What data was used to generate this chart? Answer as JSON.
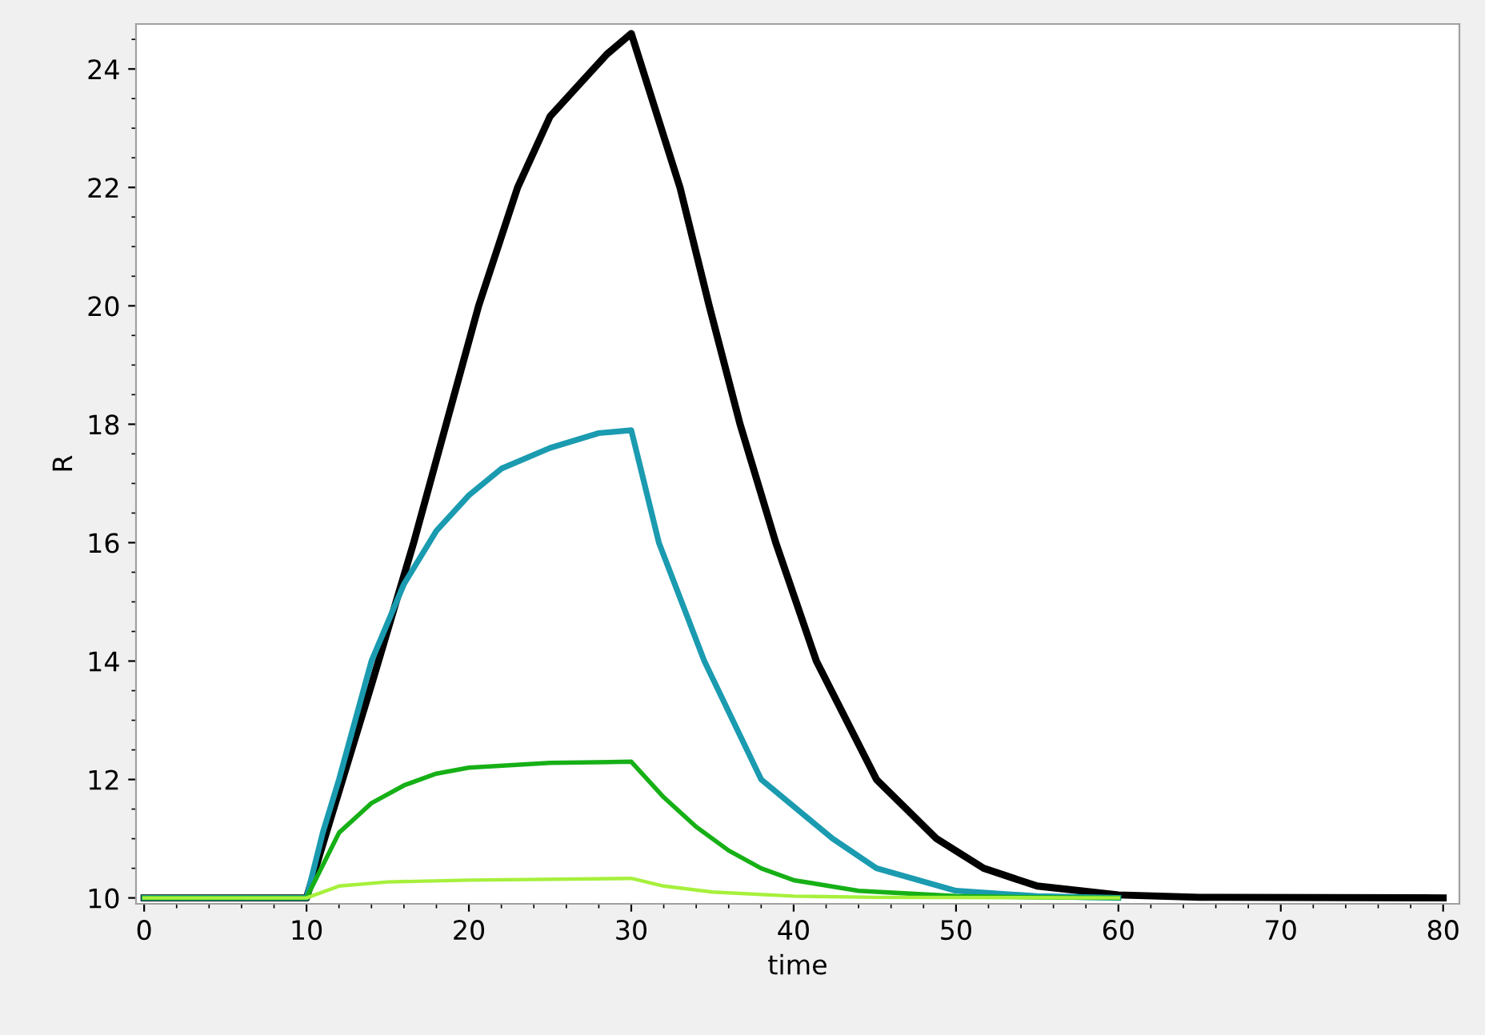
{
  "chart_data": {
    "type": "line",
    "xlabel": "time",
    "ylabel": "R",
    "xlim": [
      -0.5,
      81
    ],
    "ylim": [
      9.9,
      24.76
    ],
    "xticks": [
      0,
      10,
      20,
      30,
      40,
      50,
      60,
      70,
      80
    ],
    "yticks": [
      10,
      12,
      14,
      16,
      18,
      20,
      22,
      24
    ],
    "grid": false,
    "legend": false,
    "line_style": "solid",
    "marker": "none",
    "series": [
      {
        "color": "#000000",
        "x": [
          0,
          10,
          12,
          14,
          16.6,
          18.6,
          20.6,
          23,
          25,
          27,
          28.5,
          30,
          33,
          34.8,
          36.7,
          38.9,
          41.4,
          45.1,
          48.8,
          51.7,
          55,
          60,
          65,
          80
        ],
        "values": [
          10,
          10,
          11.8,
          13.6,
          16,
          18,
          20,
          22,
          23.2,
          23.8,
          24.25,
          24.6,
          22,
          20,
          18,
          16,
          14,
          12,
          11,
          10.5,
          10.2,
          10.05,
          10.01,
          10
        ]
      },
      {
        "color": "#1a9bb0",
        "x": [
          0,
          10,
          11,
          12,
          14,
          16,
          18,
          20,
          22,
          25,
          28,
          30,
          31.7,
          34.5,
          38,
          42.4,
          45.1,
          50,
          55,
          60
        ],
        "values": [
          10,
          10,
          11.1,
          12,
          14,
          15.3,
          16.2,
          16.8,
          17.25,
          17.6,
          17.85,
          17.9,
          16,
          14,
          12,
          11,
          10.5,
          10.12,
          10.03,
          10
        ]
      },
      {
        "color": "#16b016",
        "x": [
          0,
          10,
          12,
          14,
          16,
          18,
          20,
          25,
          30,
          32,
          34,
          36,
          38,
          40,
          44,
          50,
          55,
          60
        ],
        "values": [
          10,
          10,
          11.1,
          11.6,
          11.9,
          12.1,
          12.2,
          12.28,
          12.3,
          11.7,
          11.2,
          10.8,
          10.5,
          10.3,
          10.12,
          10.03,
          10.01,
          10
        ]
      },
      {
        "color": "#a6f03c",
        "x": [
          0,
          10,
          12,
          15,
          20,
          30,
          32,
          35,
          40,
          45,
          60
        ],
        "values": [
          10,
          10,
          10.2,
          10.27,
          10.3,
          10.33,
          10.2,
          10.1,
          10.03,
          10.01,
          10
        ]
      }
    ]
  }
}
